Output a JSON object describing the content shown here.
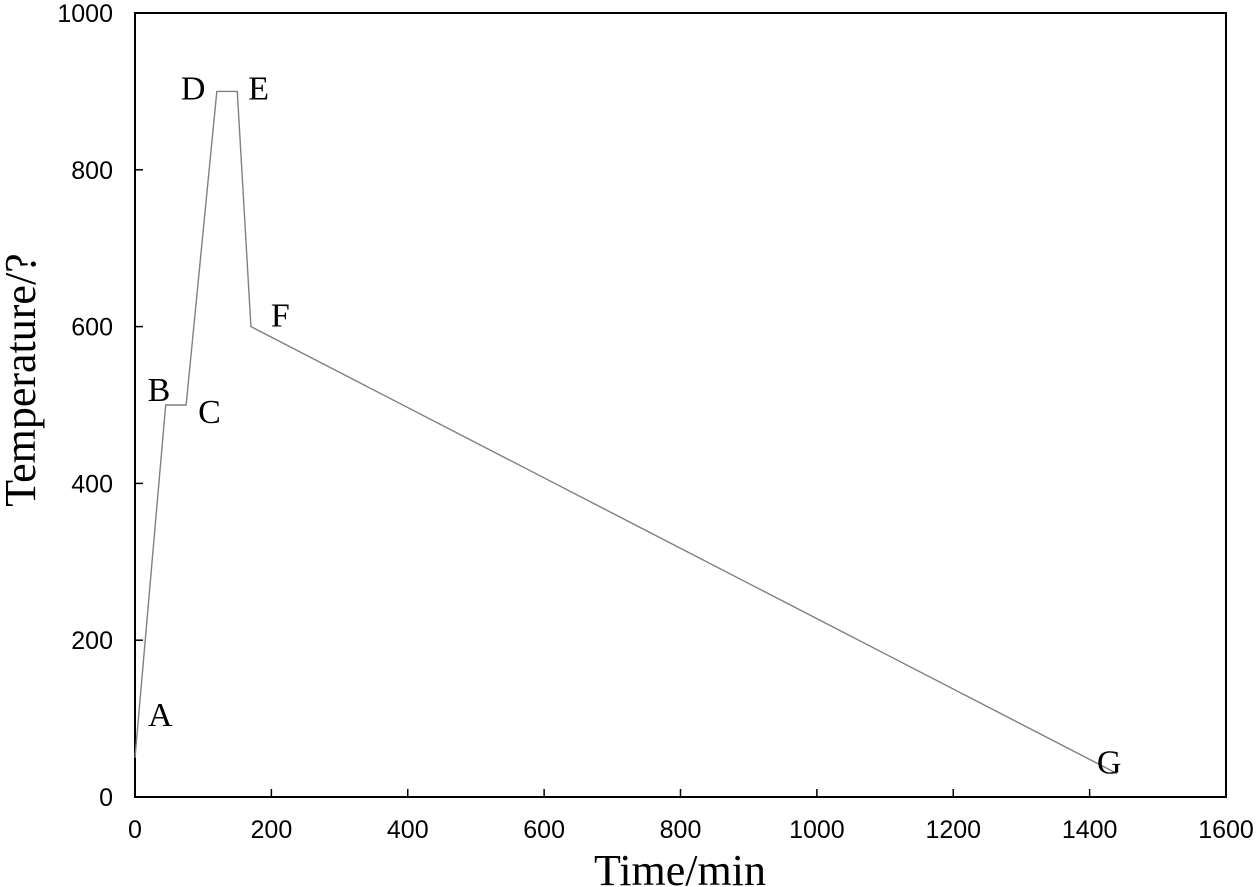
{
  "chart_data": {
    "type": "line",
    "xlabel": "Time/min",
    "ylabel": "Temperature/?",
    "xlim": [
      0,
      1600
    ],
    "ylim": [
      0,
      1000
    ],
    "xticks": [
      "0",
      "200",
      "400",
      "600",
      "800",
      "1000",
      "1200",
      "1400",
      "1600"
    ],
    "yticks": [
      "0",
      "200",
      "400",
      "600",
      "800",
      "1000"
    ],
    "grid": false,
    "legend": "none",
    "line_color": "#808080",
    "series": [
      {
        "points": [
          {
            "label": "A",
            "x": 0,
            "y": 50
          },
          {
            "label": "B",
            "x": 45,
            "y": 500
          },
          {
            "label": "C",
            "x": 75,
            "y": 500
          },
          {
            "label": "D",
            "x": 120,
            "y": 900
          },
          {
            "label": "E",
            "x": 150,
            "y": 900
          },
          {
            "label": "F",
            "x": 170,
            "y": 600
          },
          {
            "label": "G",
            "x": 1440,
            "y": 30
          }
        ]
      }
    ]
  }
}
